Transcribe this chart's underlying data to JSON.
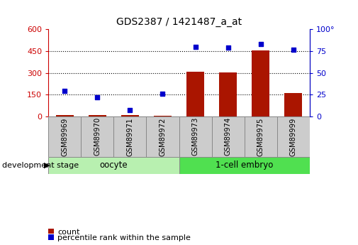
{
  "title": "GDS2387 / 1421487_a_at",
  "samples": [
    "GSM89969",
    "GSM89970",
    "GSM89971",
    "GSM89972",
    "GSM89973",
    "GSM89974",
    "GSM89975",
    "GSM89999"
  ],
  "count_values": [
    10,
    10,
    8,
    3,
    310,
    305,
    455,
    160
  ],
  "percentile_values": [
    29,
    22,
    7,
    26,
    80,
    79,
    83,
    77
  ],
  "groups": [
    {
      "label": "oocyte",
      "n": 4,
      "color": "#b8f0b0"
    },
    {
      "label": "1-cell embryo",
      "n": 4,
      "color": "#50e050"
    }
  ],
  "left_ylim": [
    0,
    600
  ],
  "right_ylim": [
    0,
    100
  ],
  "left_yticks": [
    0,
    150,
    300,
    450,
    600
  ],
  "right_yticks": [
    0,
    25,
    50,
    75,
    100
  ],
  "left_ycolor": "#cc0000",
  "right_ycolor": "#0000cc",
  "bar_color": "#aa1500",
  "dot_color": "#0000cc",
  "grid_color": "#000000",
  "bg_color": "#ffffff",
  "xlabel_stage": "development stage",
  "legend_count": "count",
  "legend_pct": "percentile rank within the sample",
  "right_ytick_labels": [
    "0",
    "25",
    "50",
    "75",
    "100°"
  ],
  "sample_box_color": "#cccccc",
  "sample_box_edge": "#888888"
}
